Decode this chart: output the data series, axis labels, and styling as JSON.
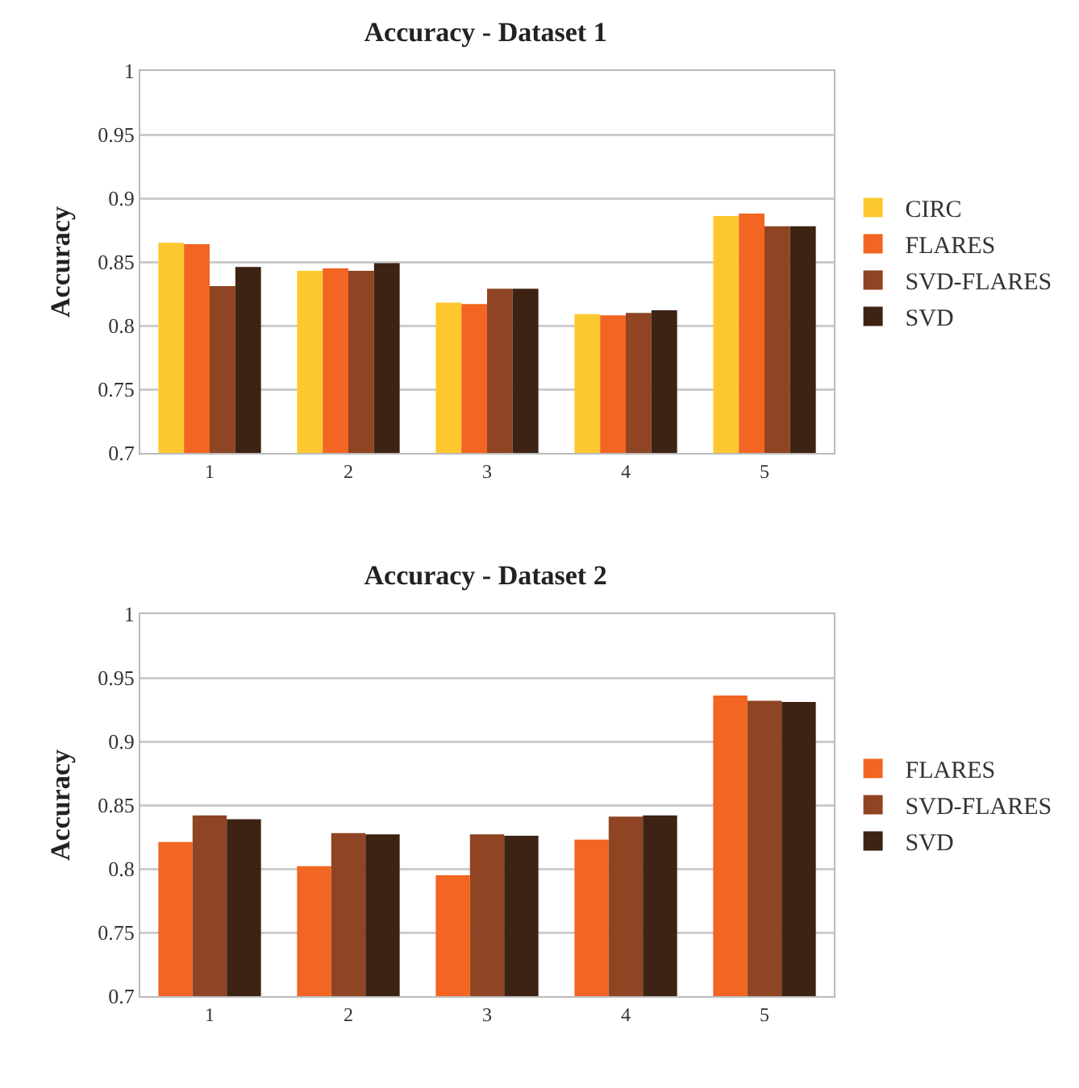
{
  "chart_data": [
    {
      "type": "bar",
      "title": "Accuracy - Dataset 1",
      "ylabel": "Accuracy",
      "categories": [
        "1",
        "2",
        "3",
        "4",
        "5"
      ],
      "series": [
        {
          "name": "CIRC",
          "color": "#fdc82f",
          "values": [
            0.865,
            0.843,
            0.818,
            0.809,
            0.886
          ]
        },
        {
          "name": "FLARES",
          "color": "#f26522",
          "values": [
            0.864,
            0.845,
            0.817,
            0.808,
            0.888
          ]
        },
        {
          "name": "SVD-FLARES",
          "color": "#8f4523",
          "values": [
            0.831,
            0.843,
            0.829,
            0.81,
            0.878
          ]
        },
        {
          "name": "SVD",
          "color": "#3d2314",
          "values": [
            0.846,
            0.849,
            0.829,
            0.812,
            0.878
          ]
        }
      ],
      "ylim": [
        0.7,
        1
      ],
      "yticks": [
        0.7,
        0.75,
        0.8,
        0.85,
        0.9,
        0.95,
        1
      ],
      "grid": "y",
      "legend": "right"
    },
    {
      "type": "bar",
      "title": "Accuracy - Dataset 2",
      "ylabel": "Accuracy",
      "categories": [
        "1",
        "2",
        "3",
        "4",
        "5"
      ],
      "series": [
        {
          "name": "FLARES",
          "color": "#f26522",
          "values": [
            0.821,
            0.802,
            0.795,
            0.823,
            0.936
          ]
        },
        {
          "name": "SVD-FLARES",
          "color": "#8f4523",
          "values": [
            0.842,
            0.828,
            0.827,
            0.841,
            0.932
          ]
        },
        {
          "name": "SVD",
          "color": "#3d2314",
          "values": [
            0.839,
            0.827,
            0.826,
            0.842,
            0.931
          ]
        }
      ],
      "ylim": [
        0.7,
        1
      ],
      "yticks": [
        0.7,
        0.75,
        0.8,
        0.85,
        0.9,
        0.95,
        1
      ],
      "grid": "y",
      "legend": "right"
    }
  ]
}
